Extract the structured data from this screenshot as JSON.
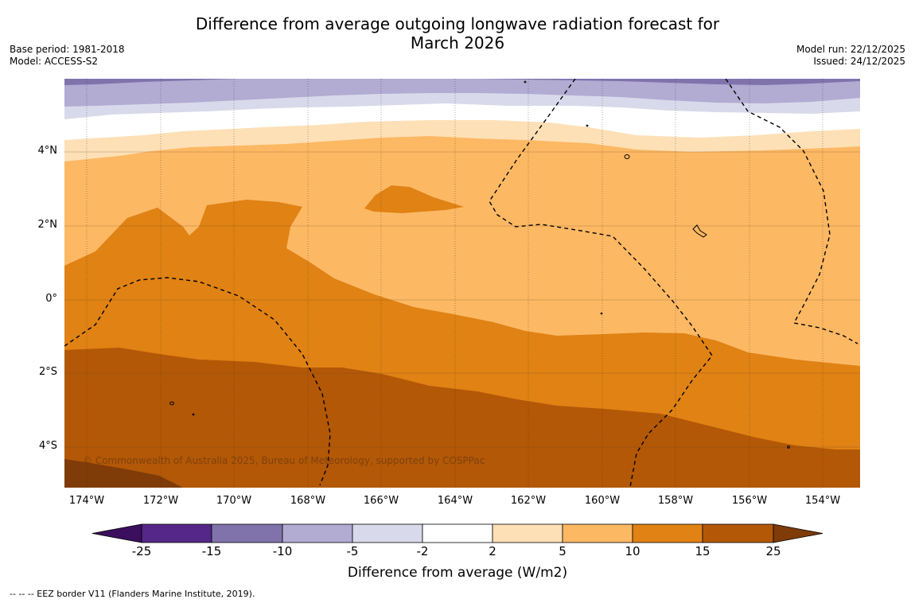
{
  "title": {
    "line1": "Difference from average outgoing longwave radiation forecast for",
    "line2": "March 2026"
  },
  "meta_left": {
    "base_period": "Base period: 1981-2018",
    "model": "Model: ACCESS-S2"
  },
  "meta_right": {
    "model_run": "Model run: 22/12/2025",
    "issued": "Issued: 24/12/2025"
  },
  "map": {
    "lon_range": [
      -174.6,
      -153.0
    ],
    "lat_range": [
      -5.2,
      5.8
    ],
    "lat_ticks": [
      {
        "label": "4°N",
        "value": 4
      },
      {
        "label": "2°N",
        "value": 2
      },
      {
        "label": "0°",
        "value": 0
      },
      {
        "label": "2°S",
        "value": -2
      },
      {
        "label": "4°S",
        "value": -4
      }
    ],
    "lon_ticks": [
      {
        "label": "174°W",
        "value": -174
      },
      {
        "label": "172°W",
        "value": -172
      },
      {
        "label": "170°W",
        "value": -170
      },
      {
        "label": "168°W",
        "value": -168
      },
      {
        "label": "166°W",
        "value": -166
      },
      {
        "label": "164°W",
        "value": -164
      },
      {
        "label": "162°W",
        "value": -162
      },
      {
        "label": "160°W",
        "value": -160
      },
      {
        "label": "158°W",
        "value": -158
      },
      {
        "label": "156°W",
        "value": -156
      },
      {
        "label": "154°W",
        "value": -154
      }
    ],
    "copyright": "© Commonwealth of Australia 2025, Bureau of Meteorology, supported by COSPPac"
  },
  "colorbar": {
    "labels": [
      "-25",
      "-15",
      "-10",
      "-5",
      "-2",
      "2",
      "5",
      "10",
      "15",
      "25"
    ],
    "colors": {
      "below_min": "#3b0f5e",
      "purple_dark": "#542788",
      "purple_mid": "#8073ac",
      "purple_light": "#b2abd2",
      "purple_pale": "#d8daeb",
      "neutral": "#ffffff",
      "orange_pale": "#fee0b6",
      "orange_light": "#fdb863",
      "orange_mid": "#e08214",
      "orange_dark": "#b35806",
      "above_max": "#7f3b08"
    },
    "title": "Difference from average (W/m2)"
  },
  "footnote": "--  --  -- EEZ border V11 (Flanders Marine Institute, 2019)."
}
